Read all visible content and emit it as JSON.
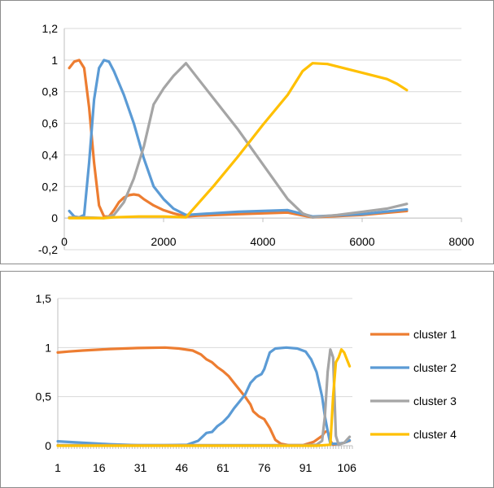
{
  "chart_data": [
    {
      "type": "line",
      "title": "",
      "xlabel": "",
      "ylabel": "",
      "xlim": [
        0,
        8000
      ],
      "ylim": [
        -0.2,
        1.2
      ],
      "grid": "horizontal",
      "legend": "none",
      "x_ticks": [
        "0",
        "2000",
        "4000",
        "6000",
        "8000"
      ],
      "y_ticks": [
        "-0,2",
        "0",
        "0,2",
        "0,4",
        "0,6",
        "0,8",
        "1",
        "1,2"
      ],
      "series": [
        {
          "color": "#ED7D31",
          "points": [
            [
              100,
              0.95
            ],
            [
              200,
              0.99
            ],
            [
              300,
              1.0
            ],
            [
              400,
              0.95
            ],
            [
              500,
              0.7
            ],
            [
              600,
              0.35
            ],
            [
              700,
              0.08
            ],
            [
              800,
              0.01
            ],
            [
              900,
              0.01
            ],
            [
              1000,
              0.05
            ],
            [
              1100,
              0.1
            ],
            [
              1200,
              0.13
            ],
            [
              1300,
              0.145
            ],
            [
              1400,
              0.15
            ],
            [
              1500,
              0.145
            ],
            [
              1600,
              0.12
            ],
            [
              1800,
              0.08
            ],
            [
              2000,
              0.05
            ],
            [
              2200,
              0.03
            ],
            [
              2450,
              0.01
            ],
            [
              2700,
              0.015
            ],
            [
              3500,
              0.025
            ],
            [
              4500,
              0.035
            ],
            [
              5000,
              0.005
            ],
            [
              6000,
              0.02
            ],
            [
              6900,
              0.045
            ]
          ]
        },
        {
          "color": "#5B9BD5",
          "points": [
            [
              100,
              0.045
            ],
            [
              200,
              0.01
            ],
            [
              300,
              0.005
            ],
            [
              400,
              0.02
            ],
            [
              500,
              0.35
            ],
            [
              600,
              0.75
            ],
            [
              700,
              0.95
            ],
            [
              800,
              1.0
            ],
            [
              900,
              0.99
            ],
            [
              1000,
              0.93
            ],
            [
              1200,
              0.78
            ],
            [
              1400,
              0.6
            ],
            [
              1600,
              0.38
            ],
            [
              1800,
              0.2
            ],
            [
              2000,
              0.12
            ],
            [
              2200,
              0.06
            ],
            [
              2450,
              0.02
            ],
            [
              2700,
              0.025
            ],
            [
              3500,
              0.04
            ],
            [
              4500,
              0.05
            ],
            [
              5000,
              0.01
            ],
            [
              6000,
              0.025
            ],
            [
              6900,
              0.055
            ]
          ]
        },
        {
          "color": "#A5A5A5",
          "points": [
            [
              100,
              0.005
            ],
            [
              400,
              0.005
            ],
            [
              800,
              0.0
            ],
            [
              1000,
              0.02
            ],
            [
              1200,
              0.1
            ],
            [
              1400,
              0.25
            ],
            [
              1600,
              0.45
            ],
            [
              1800,
              0.72
            ],
            [
              2000,
              0.82
            ],
            [
              2200,
              0.9
            ],
            [
              2450,
              0.98
            ],
            [
              2700,
              0.88
            ],
            [
              3000,
              0.76
            ],
            [
              3500,
              0.56
            ],
            [
              4000,
              0.34
            ],
            [
              4500,
              0.12
            ],
            [
              4800,
              0.03
            ],
            [
              5000,
              0.005
            ],
            [
              5500,
              0.02
            ],
            [
              6000,
              0.04
            ],
            [
              6500,
              0.06
            ],
            [
              6900,
              0.09
            ]
          ]
        },
        {
          "color": "#FFC000",
          "points": [
            [
              100,
              0.0
            ],
            [
              800,
              0.0
            ],
            [
              1000,
              0.005
            ],
            [
              1500,
              0.01
            ],
            [
              2000,
              0.01
            ],
            [
              2450,
              0.005
            ],
            [
              3000,
              0.2
            ],
            [
              3500,
              0.39
            ],
            [
              4000,
              0.59
            ],
            [
              4500,
              0.78
            ],
            [
              4800,
              0.93
            ],
            [
              5000,
              0.98
            ],
            [
              5300,
              0.975
            ],
            [
              6000,
              0.92
            ],
            [
              6500,
              0.88
            ],
            [
              6700,
              0.85
            ],
            [
              6900,
              0.81
            ]
          ]
        }
      ]
    },
    {
      "type": "line",
      "title": "",
      "xlabel": "",
      "ylabel": "",
      "xlim": [
        1,
        108
      ],
      "ylim": [
        0,
        1.5
      ],
      "grid": "horizontal",
      "legend": "right",
      "x_ticks": [
        "1",
        "16",
        "31",
        "46",
        "61",
        "76",
        "91",
        "106"
      ],
      "y_ticks": [
        "0",
        "0,5",
        "1",
        "1,5"
      ],
      "series": [
        {
          "name": "cluster 1",
          "color": "#ED7D31",
          "points": [
            [
              1,
              0.95
            ],
            [
              5,
              0.96
            ],
            [
              10,
              0.97
            ],
            [
              20,
              0.985
            ],
            [
              30,
              0.995
            ],
            [
              40,
              1.0
            ],
            [
              45,
              0.99
            ],
            [
              50,
              0.97
            ],
            [
              53,
              0.93
            ],
            [
              55,
              0.88
            ],
            [
              57,
              0.85
            ],
            [
              59,
              0.8
            ],
            [
              61,
              0.76
            ],
            [
              63,
              0.71
            ],
            [
              65,
              0.64
            ],
            [
              67,
              0.57
            ],
            [
              69,
              0.5
            ],
            [
              71,
              0.42
            ],
            [
              72,
              0.35
            ],
            [
              74,
              0.3
            ],
            [
              76,
              0.27
            ],
            [
              78,
              0.18
            ],
            [
              80,
              0.06
            ],
            [
              82,
              0.02
            ],
            [
              85,
              0.005
            ],
            [
              90,
              0.005
            ],
            [
              94,
              0.04
            ],
            [
              97,
              0.1
            ],
            [
              98,
              0.14
            ],
            [
              99,
              0.15
            ],
            [
              100,
              0.05
            ],
            [
              101,
              0.01
            ],
            [
              103,
              0.02
            ],
            [
              105,
              0.03
            ],
            [
              107,
              0.05
            ]
          ]
        },
        {
          "name": "cluster 2",
          "color": "#5B9BD5",
          "points": [
            [
              1,
              0.045
            ],
            [
              10,
              0.03
            ],
            [
              20,
              0.015
            ],
            [
              30,
              0.005
            ],
            [
              40,
              0.005
            ],
            [
              48,
              0.01
            ],
            [
              52,
              0.05
            ],
            [
              55,
              0.13
            ],
            [
              57,
              0.14
            ],
            [
              59,
              0.2
            ],
            [
              61,
              0.24
            ],
            [
              63,
              0.3
            ],
            [
              65,
              0.38
            ],
            [
              67,
              0.45
            ],
            [
              69,
              0.52
            ],
            [
              71,
              0.64
            ],
            [
              73,
              0.7
            ],
            [
              75,
              0.73
            ],
            [
              76,
              0.78
            ],
            [
              78,
              0.95
            ],
            [
              80,
              0.99
            ],
            [
              84,
              1.0
            ],
            [
              88,
              0.99
            ],
            [
              91,
              0.96
            ],
            [
              93,
              0.88
            ],
            [
              95,
              0.75
            ],
            [
              97,
              0.5
            ],
            [
              98,
              0.3
            ],
            [
              99,
              0.15
            ],
            [
              100,
              0.02
            ],
            [
              103,
              0.02
            ],
            [
              105,
              0.03
            ],
            [
              107,
              0.055
            ]
          ]
        },
        {
          "name": "cluster 3",
          "color": "#A5A5A5",
          "points": [
            [
              1,
              0.005
            ],
            [
              90,
              0.005
            ],
            [
              95,
              0.01
            ],
            [
              97,
              0.05
            ],
            [
              98,
              0.3
            ],
            [
              99,
              0.75
            ],
            [
              100,
              0.98
            ],
            [
              101,
              0.9
            ],
            [
              102,
              0.1
            ],
            [
              103,
              0.01
            ],
            [
              105,
              0.03
            ],
            [
              107,
              0.09
            ]
          ]
        },
        {
          "name": "cluster 4",
          "color": "#FFC000",
          "points": [
            [
              1,
              0.0
            ],
            [
              95,
              0.0
            ],
            [
              100,
              0.01
            ],
            [
              101,
              0.5
            ],
            [
              102,
              0.85
            ],
            [
              103,
              0.9
            ],
            [
              104,
              0.98
            ],
            [
              105,
              0.95
            ],
            [
              106,
              0.88
            ],
            [
              107,
              0.81
            ]
          ]
        }
      ]
    }
  ]
}
